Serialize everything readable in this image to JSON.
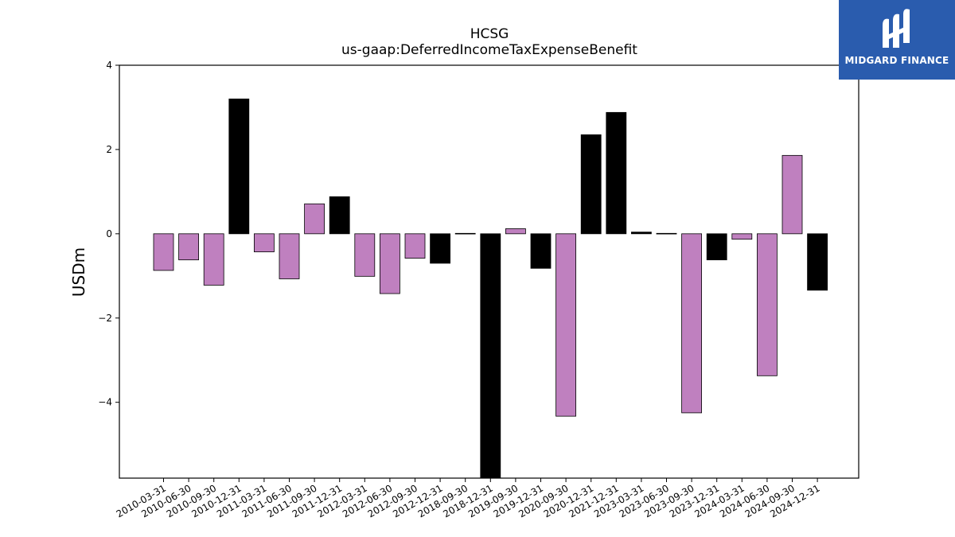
{
  "logo": {
    "text": "MIDGARD FINANCE",
    "icon": "midgard-logo-mark",
    "background": "#2a5cae"
  },
  "colors": {
    "positive_bar_a": "#bf80bf",
    "alt_bar": "#000000",
    "edge": "#000000"
  },
  "chart_data": {
    "type": "bar",
    "title": "HCSG",
    "subtitle": "us-gaap:DeferredIncomeTaxExpenseBenefit",
    "xlabel": "",
    "ylabel": "USDm",
    "ylim": [
      -5.8,
      4.0
    ],
    "yticks": [
      4,
      2,
      0,
      -2,
      -4
    ],
    "ytick_labels": [
      "4",
      "2",
      "0",
      "−2",
      "−4"
    ],
    "grid": false,
    "categories": [
      "2010-03-31",
      "2010-06-30",
      "2010-09-30",
      "2010-12-31",
      "2011-03-31",
      "2011-06-30",
      "2011-09-30",
      "2011-12-31",
      "2012-03-31",
      "2012-06-30",
      "2012-09-30",
      "2012-12-31",
      "2018-09-30",
      "2018-12-31",
      "2019-09-30",
      "2019-12-31",
      "2020-09-30",
      "2020-12-31",
      "2021-12-31",
      "2023-03-31",
      "2023-06-30",
      "2023-09-30",
      "2023-12-31",
      "2024-03-31",
      "2024-06-30",
      "2024-09-30",
      "2024-12-31"
    ],
    "values": [
      -0.87,
      -0.62,
      -1.22,
      3.2,
      -0.43,
      -1.07,
      0.71,
      0.88,
      -1.01,
      -1.42,
      -0.58,
      -0.7,
      0.01,
      -5.8,
      0.12,
      -0.82,
      -4.33,
      2.35,
      2.88,
      0.04,
      0.01,
      -4.25,
      -0.62,
      -0.13,
      -3.37,
      1.86,
      -1.34
    ],
    "bar_colors": [
      "#bf80bf",
      "#bf80bf",
      "#bf80bf",
      "#000000",
      "#bf80bf",
      "#bf80bf",
      "#bf80bf",
      "#000000",
      "#bf80bf",
      "#bf80bf",
      "#bf80bf",
      "#000000",
      "#000000",
      "#000000",
      "#bf80bf",
      "#000000",
      "#bf80bf",
      "#000000",
      "#000000",
      "#000000",
      "#000000",
      "#bf80bf",
      "#000000",
      "#bf80bf",
      "#bf80bf",
      "#bf80bf",
      "#000000"
    ]
  }
}
